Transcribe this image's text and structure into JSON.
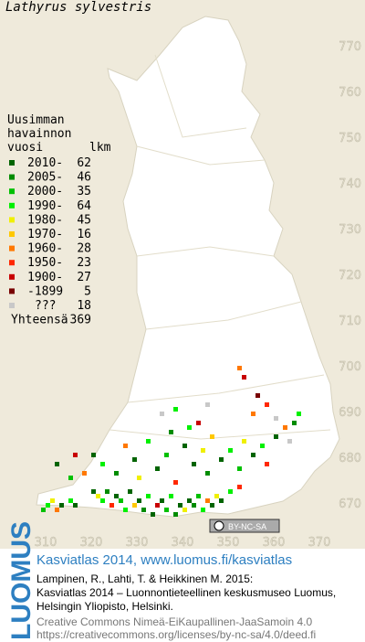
{
  "title": "Lathyrus sylvestris",
  "legend": {
    "header": [
      "Uusimman",
      "havainnon",
      "vuosi"
    ],
    "count_header": "lkm",
    "entries": [
      {
        "label": "2010-",
        "count": 62,
        "color": "#006400"
      },
      {
        "label": "2005-",
        "count": 46,
        "color": "#008c00"
      },
      {
        "label": "2000-",
        "count": 35,
        "color": "#00c000"
      },
      {
        "label": "1990-",
        "count": 64,
        "color": "#00f000"
      },
      {
        "label": "1980-",
        "count": 45,
        "color": "#f0f000"
      },
      {
        "label": "1970-",
        "count": 16,
        "color": "#ffc800"
      },
      {
        "label": "1960-",
        "count": 28,
        "color": "#ff7800"
      },
      {
        "label": "1950-",
        "count": 23,
        "color": "#ff2800"
      },
      {
        "label": "1900-",
        "count": 27,
        "color": "#c80000"
      },
      {
        "label": "-1899",
        "count": 5,
        "color": "#780000"
      },
      {
        "label": "???",
        "count": 18,
        "color": "#c8c8c8"
      }
    ],
    "total_label": "Yhteensä",
    "total": 369
  },
  "map": {
    "xlim": [
      300,
      380
    ],
    "ylim": [
      662,
      780
    ],
    "xticks": [
      310,
      320,
      330,
      340,
      350,
      360,
      370
    ],
    "yticks": [
      670,
      680,
      690,
      700,
      710,
      720,
      730,
      740,
      750,
      760,
      770
    ],
    "cells": [
      [
        310,
        669,
        "1990-"
      ],
      [
        311,
        670,
        "1980-"
      ],
      [
        313,
        669,
        "2010-"
      ],
      [
        312,
        668,
        "1960-"
      ],
      [
        315,
        670,
        "1990-"
      ],
      [
        316,
        669,
        "2010-"
      ],
      [
        309,
        668,
        "2000-"
      ],
      [
        320,
        672,
        "2010-"
      ],
      [
        321,
        671,
        "1980-"
      ],
      [
        322,
        670,
        "1990-"
      ],
      [
        323,
        672,
        "2005-"
      ],
      [
        324,
        669,
        "1950-"
      ],
      [
        325,
        671,
        "2010-"
      ],
      [
        326,
        670,
        "2000-"
      ],
      [
        327,
        668,
        "1990-"
      ],
      [
        328,
        672,
        "2010-"
      ],
      [
        329,
        669,
        "1970-"
      ],
      [
        330,
        670,
        "2010-"
      ],
      [
        331,
        668,
        "2005-"
      ],
      [
        332,
        671,
        "1990-"
      ],
      [
        333,
        667,
        "2010-"
      ],
      [
        334,
        669,
        "1900-"
      ],
      [
        335,
        670,
        "2010-"
      ],
      [
        336,
        668,
        "2000-"
      ],
      [
        337,
        671,
        "1990-"
      ],
      [
        338,
        667,
        "2005-"
      ],
      [
        339,
        669,
        "2010-"
      ],
      [
        340,
        668,
        "1980-"
      ],
      [
        341,
        670,
        "2010-"
      ],
      [
        342,
        669,
        "2005-"
      ],
      [
        343,
        671,
        "2000-"
      ],
      [
        344,
        668,
        "1990-"
      ],
      [
        345,
        670,
        "1960-"
      ],
      [
        346,
        669,
        "2010-"
      ],
      [
        347,
        671,
        "1980-"
      ],
      [
        348,
        670,
        "2010-"
      ],
      [
        350,
        672,
        "1990-"
      ],
      [
        352,
        673,
        "1950-"
      ],
      [
        320,
        680,
        "2010-"
      ],
      [
        322,
        678,
        "1990-"
      ],
      [
        325,
        676,
        "2005-"
      ],
      [
        327,
        682,
        "1960-"
      ],
      [
        329,
        679,
        "2010-"
      ],
      [
        330,
        675,
        "1980-"
      ],
      [
        332,
        683,
        "1990-"
      ],
      [
        334,
        677,
        "2010-"
      ],
      [
        336,
        680,
        "2000-"
      ],
      [
        337,
        685,
        "2005-"
      ],
      [
        338,
        674,
        "1950-"
      ],
      [
        340,
        682,
        "2010-"
      ],
      [
        341,
        686,
        "1990-"
      ],
      [
        342,
        678,
        "2010-"
      ],
      [
        343,
        687,
        "1900-"
      ],
      [
        344,
        681,
        "1980-"
      ],
      [
        345,
        676,
        "2005-"
      ],
      [
        346,
        684,
        "1970-"
      ],
      [
        348,
        679,
        "2010-"
      ],
      [
        350,
        681,
        "1990-"
      ],
      [
        352,
        677,
        "2000-"
      ],
      [
        353,
        683,
        "1980-"
      ],
      [
        355,
        680,
        "2010-"
      ],
      [
        357,
        682,
        "1990-"
      ],
      [
        358,
        678,
        "1950-"
      ],
      [
        360,
        684,
        "2010-"
      ],
      [
        362,
        686,
        "1960-"
      ],
      [
        364,
        687,
        "2005-"
      ],
      [
        365,
        689,
        "1990-"
      ],
      [
        312,
        678,
        "2010-"
      ],
      [
        315,
        675,
        "2000-"
      ],
      [
        318,
        676,
        "1960-"
      ],
      [
        316,
        680,
        "1900-"
      ],
      [
        335,
        689,
        "???"
      ],
      [
        338,
        690,
        "1990-"
      ],
      [
        355,
        689,
        "1960-"
      ],
      [
        358,
        691,
        "1950-"
      ],
      [
        360,
        688,
        "???"
      ],
      [
        353,
        697,
        "1900-"
      ],
      [
        352,
        699,
        "1960-"
      ],
      [
        356,
        693,
        "-1899"
      ],
      [
        363,
        683,
        "???"
      ],
      [
        345,
        691,
        "???"
      ]
    ],
    "badge": "BY-NC-SA"
  },
  "footer": {
    "logo": "LUOMUS",
    "link": "Kasviatlas 2014, www.luomus.fi/kasviatlas",
    "citation": [
      "Lampinen, R., Lahti, T. & Heikkinen M. 2015:",
      "Kasviatlas 2014 – Luonnontieteellinen keskusmuseo Luomus,",
      "Helsingin Yliopisto, Helsinki."
    ],
    "license": [
      "Creative Commons Nimeä-EiKaupallinen-JaaSamoin 4.0",
      "https://creativecommons.org/licenses/by-nc-sa/4.0/deed.fi"
    ]
  }
}
